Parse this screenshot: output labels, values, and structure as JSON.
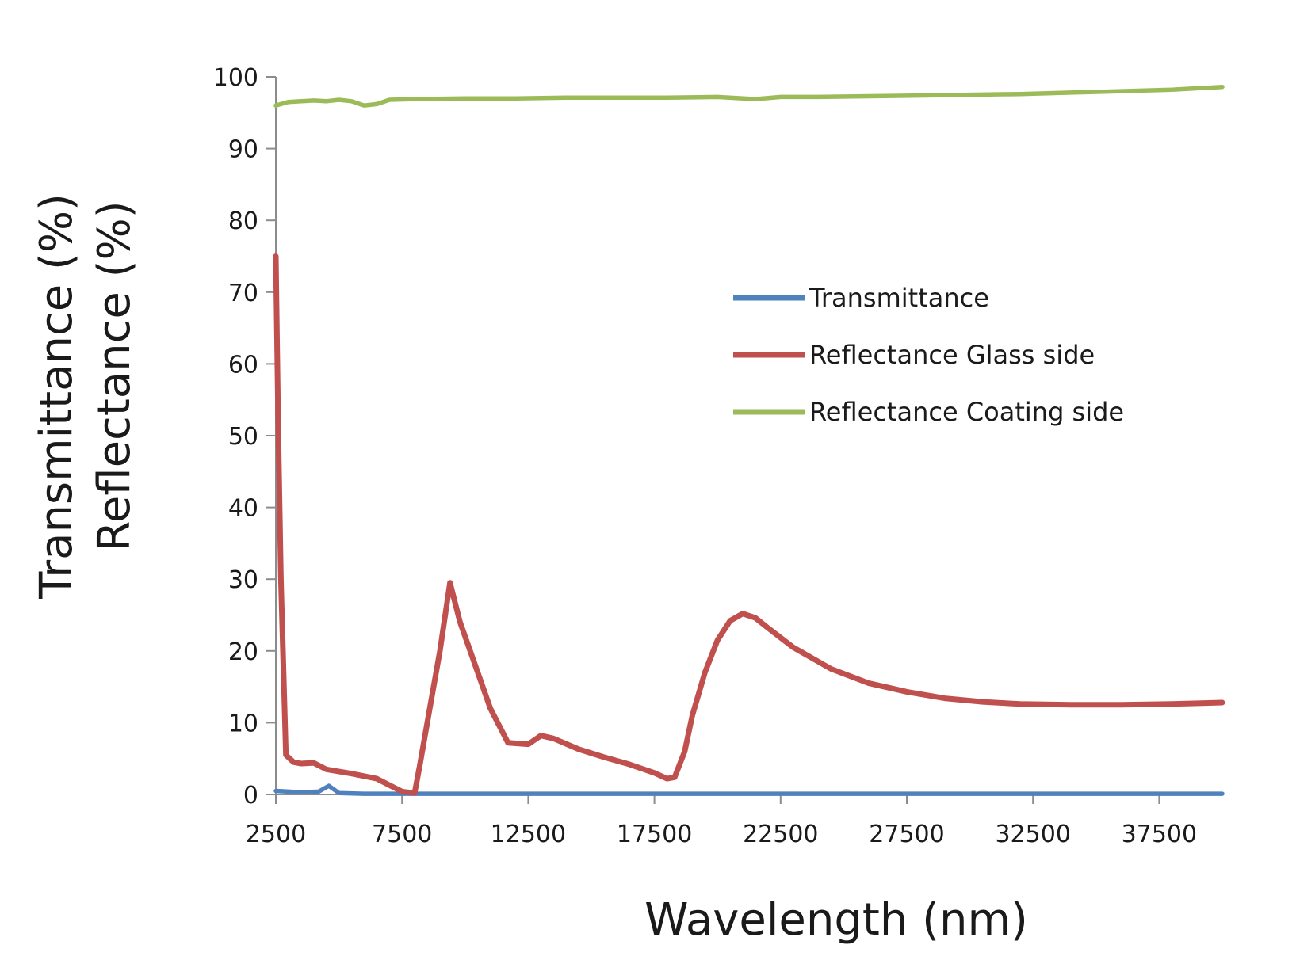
{
  "chart_data": {
    "type": "line",
    "title": "",
    "xlabel": "Wavelength (nm)",
    "ylabel_lines": [
      "Transmittance (%)",
      "Reflectance (%)"
    ],
    "xlim": [
      2500,
      40000
    ],
    "ylim": [
      0,
      100
    ],
    "x_ticks": [
      2500,
      7500,
      12500,
      17500,
      22500,
      27500,
      32500,
      37500
    ],
    "y_ticks": [
      0,
      10,
      20,
      30,
      40,
      50,
      60,
      70,
      80,
      90,
      100
    ],
    "legend_position": "center-right",
    "series": [
      {
        "name": "Transmittance",
        "color": "#4f81bd",
        "x": [
          2500,
          3500,
          4200,
          4600,
          5000,
          6000,
          8000,
          10000,
          20000,
          30000,
          40000
        ],
        "y": [
          0.5,
          0.3,
          0.4,
          1.2,
          0.2,
          0.1,
          0.1,
          0.1,
          0.1,
          0.1,
          0.1
        ]
      },
      {
        "name": "Reflectance Glass side",
        "color": "#c0504d",
        "x": [
          2500,
          2600,
          2700,
          2900,
          3200,
          3500,
          4000,
          4500,
          5500,
          6500,
          7000,
          7500,
          8000,
          8200,
          8600,
          9000,
          9400,
          9800,
          10300,
          11000,
          11700,
          12500,
          13000,
          13500,
          14500,
          15500,
          16500,
          17500,
          18000,
          18300,
          18700,
          19000,
          19500,
          20000,
          20500,
          21000,
          21500,
          22000,
          23000,
          24500,
          26000,
          27500,
          29000,
          30500,
          32000,
          34000,
          36000,
          38000,
          40000
        ],
        "y": [
          75,
          50,
          30,
          5.5,
          4.5,
          4.3,
          4.4,
          3.5,
          2.9,
          2.2,
          1.3,
          0.4,
          0.2,
          4,
          12,
          20,
          29.5,
          24,
          19,
          12,
          7.2,
          7,
          8.2,
          7.8,
          6.3,
          5.2,
          4.2,
          3,
          2.2,
          2.4,
          6,
          11,
          17,
          21.5,
          24.2,
          25.2,
          24.6,
          23.2,
          20.5,
          17.5,
          15.5,
          14.3,
          13.4,
          12.9,
          12.6,
          12.5,
          12.5,
          12.6,
          12.8
        ]
      },
      {
        "name": "Reflectance Coating side",
        "color": "#9bbb59",
        "x": [
          2500,
          3000,
          3500,
          4000,
          4500,
          5000,
          5500,
          6000,
          6500,
          7000,
          8000,
          10000,
          12000,
          14000,
          16000,
          18000,
          20000,
          21500,
          22500,
          24000,
          26000,
          28000,
          30000,
          32000,
          34000,
          36000,
          38000,
          40000
        ],
        "y": [
          96,
          96.5,
          96.6,
          96.7,
          96.6,
          96.8,
          96.6,
          96,
          96.2,
          96.8,
          96.9,
          97,
          97,
          97.1,
          97.1,
          97.1,
          97.2,
          96.9,
          97.2,
          97.2,
          97.3,
          97.4,
          97.5,
          97.6,
          97.8,
          98,
          98.2,
          98.6
        ]
      }
    ]
  }
}
